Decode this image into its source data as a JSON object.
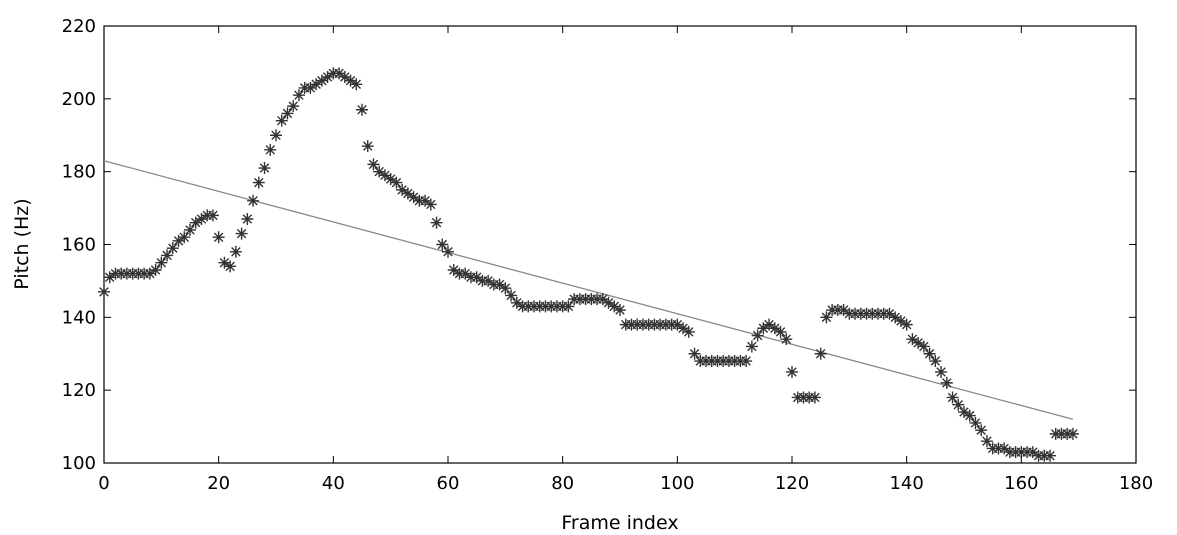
{
  "chart_data": {
    "type": "scatter",
    "xlabel": "Frame index",
    "ylabel": "Pitch (Hz)",
    "xlim": [
      0,
      180
    ],
    "ylim": [
      100,
      220
    ],
    "xticks": [
      0,
      20,
      40,
      60,
      80,
      100,
      120,
      140,
      160,
      180
    ],
    "yticks": [
      100,
      120,
      140,
      160,
      180,
      200,
      220
    ],
    "grid": false,
    "series": [
      {
        "marker": "star",
        "color": "#333333",
        "x": [
          0,
          1,
          2,
          3,
          4,
          5,
          6,
          7,
          8,
          9,
          10,
          11,
          12,
          13,
          14,
          15,
          16,
          17,
          18,
          19,
          20,
          21,
          22,
          23,
          24,
          25,
          26,
          27,
          28,
          29,
          30,
          31,
          32,
          33,
          34,
          35,
          36,
          37,
          38,
          39,
          40,
          41,
          42,
          43,
          44,
          45,
          46,
          47,
          48,
          49,
          50,
          51,
          52,
          53,
          54,
          55,
          56,
          57,
          58,
          59,
          60,
          61,
          62,
          63,
          64,
          65,
          66,
          67,
          68,
          69,
          70,
          71,
          72,
          73,
          74,
          75,
          76,
          77,
          78,
          79,
          80,
          81,
          82,
          83,
          84,
          85,
          86,
          87,
          88,
          89,
          90,
          91,
          92,
          93,
          94,
          95,
          96,
          97,
          98,
          99,
          100,
          101,
          102,
          103,
          104,
          105,
          106,
          107,
          108,
          109,
          110,
          111,
          112,
          113,
          114,
          115,
          116,
          117,
          118,
          119,
          120,
          121,
          122,
          123,
          124,
          125,
          126,
          127,
          128,
          129,
          130,
          131,
          132,
          133,
          134,
          135,
          136,
          137,
          138,
          139,
          140,
          141,
          142,
          143,
          144,
          145,
          146,
          147,
          148,
          149,
          150,
          151,
          152,
          153,
          154,
          155,
          156,
          157,
          158,
          159,
          160,
          161,
          162,
          163,
          164,
          165,
          166,
          167,
          168,
          169
        ],
        "y": [
          147,
          151,
          152,
          152,
          152,
          152,
          152,
          152,
          152,
          153,
          155,
          157,
          159,
          161,
          162,
          164,
          166,
          167,
          168,
          168,
          162,
          155,
          154,
          158,
          163,
          167,
          172,
          177,
          181,
          186,
          190,
          194,
          196,
          198,
          201,
          203,
          203,
          204,
          205,
          206,
          207,
          207,
          206,
          205,
          204,
          197,
          187,
          182,
          180,
          179,
          178,
          177,
          175,
          174,
          173,
          172,
          172,
          171,
          166,
          160,
          158,
          153,
          152,
          152,
          151,
          151,
          150,
          150,
          149,
          149,
          148,
          146,
          144,
          143,
          143,
          143,
          143,
          143,
          143,
          143,
          143,
          143,
          145,
          145,
          145,
          145,
          145,
          145,
          144,
          143,
          142,
          138,
          138,
          138,
          138,
          138,
          138,
          138,
          138,
          138,
          138,
          137,
          136,
          130,
          128,
          128,
          128,
          128,
          128,
          128,
          128,
          128,
          128,
          132,
          135,
          137,
          138,
          137,
          136,
          134,
          125,
          118,
          118,
          118,
          118,
          130,
          140,
          142,
          142,
          142,
          141,
          141,
          141,
          141,
          141,
          141,
          141,
          141,
          140,
          139,
          138,
          134,
          133,
          132,
          130,
          128,
          125,
          122,
          118,
          116,
          114,
          113,
          111,
          109,
          106,
          104,
          104,
          104,
          103,
          103,
          103,
          103,
          103,
          102,
          102,
          102,
          108,
          108,
          108,
          108
        ]
      }
    ],
    "fit_line": {
      "x": [
        0,
        169
      ],
      "y": [
        183,
        112
      ],
      "color": "#8a8a8a"
    }
  }
}
